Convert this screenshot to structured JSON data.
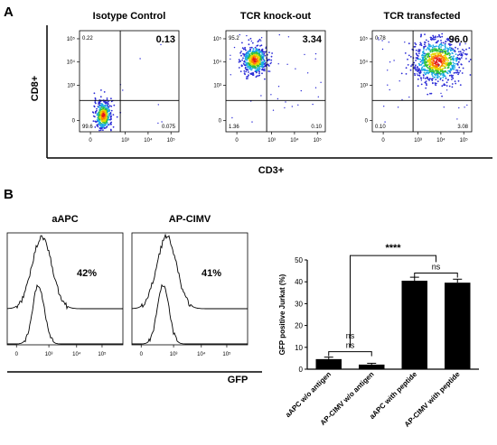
{
  "panel_a": {
    "letter": "A",
    "ylabel": "CD8+",
    "xlabel": "CD3+",
    "plots": [
      {
        "title": "Isotype Control",
        "ul": "0.22",
        "ur": "0.13",
        "ll": "99.6",
        "lr": "0.075",
        "clusters": [
          {
            "x": 1.2,
            "y": 0.8,
            "sx": 0.22,
            "sy": 0.38,
            "n": 420
          }
        ]
      },
      {
        "title": "TCR knock-out",
        "ul": "95.2",
        "ur": "3.34",
        "ll": "1.36",
        "lr": "0.10",
        "clusters": [
          {
            "x": 1.45,
            "y": 3.55,
            "sx": 0.32,
            "sy": 0.35,
            "n": 520
          }
        ]
      },
      {
        "title": "TCR transfected",
        "ul": "0.78",
        "ur": "96.0",
        "ll": "0.10",
        "lr": "3.08",
        "clusters": [
          {
            "x": 3.3,
            "y": 3.5,
            "sx": 0.62,
            "sy": 0.55,
            "n": 820
          }
        ]
      }
    ],
    "x_ticks": [
      "0",
      "10³",
      "10⁴",
      "10⁵"
    ],
    "y_ticks": [
      "0",
      "10³",
      "10⁴",
      "10⁵"
    ]
  },
  "panel_b": {
    "letter": "B",
    "xlabel": "GFP",
    "histograms": [
      {
        "title": "aAPC",
        "pct": "42%"
      },
      {
        "title": "AP-CIMV",
        "pct": "41%"
      }
    ],
    "hist_x_ticks": [
      "0",
      "10³",
      "10⁴",
      "10⁵"
    ]
  },
  "chart_data": {
    "type": "bar",
    "ylabel": "GFP positive Jurkat (%)",
    "ylim": [
      0,
      50
    ],
    "yticks": [
      "0",
      "10",
      "20",
      "30",
      "40",
      "50"
    ],
    "categories": [
      "aAPC w/o antigen",
      "AP-CIMV w/o antigen",
      "aAPC with peptide",
      "AP-CIMV with peptide"
    ],
    "values": [
      4.6,
      2.1,
      40.5,
      39.6
    ],
    "errors": [
      0.9,
      0.6,
      1.6,
      1.6
    ],
    "significance": [
      {
        "from": 0,
        "to": 1,
        "label": "ns"
      },
      {
        "from": 2,
        "to": 3,
        "label": "ns"
      },
      {
        "from": "0-1",
        "to": "2-3",
        "label": "****"
      },
      {
        "label_mid": "ns"
      }
    ]
  }
}
